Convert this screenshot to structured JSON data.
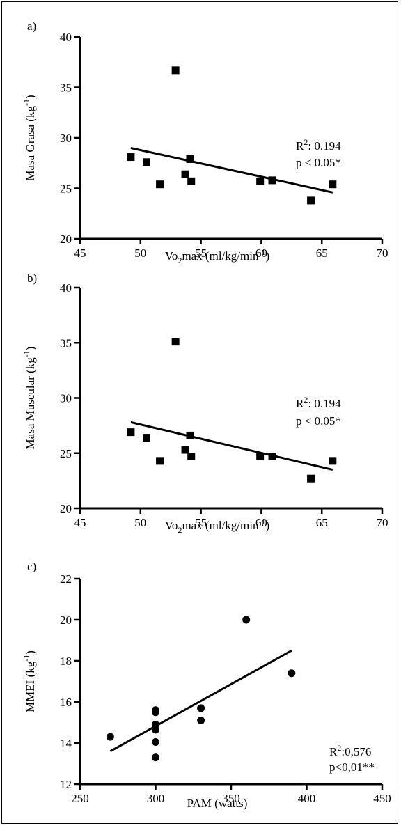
{
  "chart_data": [
    {
      "panel": "a)",
      "type": "scatter",
      "marker": "square",
      "xlabel_main": "Vo",
      "xlabel_sub": "2",
      "xlabel_rest": "max (ml/kg/min",
      "xlabel_sup": "-1",
      "xlabel_end": ")",
      "ylabel_main": "Masa Grasa (kg",
      "ylabel_sup": "-1",
      "ylabel_end": ")",
      "xlim": [
        45,
        70
      ],
      "ylim": [
        20,
        40
      ],
      "xticks": [
        "45",
        "50",
        "55",
        "60",
        "65",
        "70"
      ],
      "yticks": [
        "20",
        "25",
        "30",
        "35",
        "40"
      ],
      "points": [
        {
          "x": 49.2,
          "y": 28.1
        },
        {
          "x": 50.5,
          "y": 27.6
        },
        {
          "x": 51.6,
          "y": 25.4
        },
        {
          "x": 52.9,
          "y": 36.7
        },
        {
          "x": 53.7,
          "y": 26.4
        },
        {
          "x": 54.1,
          "y": 27.9
        },
        {
          "x": 54.2,
          "y": 25.7
        },
        {
          "x": 59.9,
          "y": 25.7
        },
        {
          "x": 60.9,
          "y": 25.8
        },
        {
          "x": 64.1,
          "y": 23.8
        },
        {
          "x": 65.9,
          "y": 25.4
        }
      ],
      "fit": {
        "x": [
          49.2,
          65.9
        ],
        "y": [
          29.0,
          24.6
        ]
      },
      "annotation": {
        "r_main": "R",
        "r_sup": "2",
        "r_rest": ": 0.194",
        "p": "p < 0.05*"
      }
    },
    {
      "panel": "b)",
      "type": "scatter",
      "marker": "square",
      "xlabel_main": "Vo",
      "xlabel_sub": "2",
      "xlabel_rest": "max (ml/kg/min",
      "xlabel_sup": "-1",
      "xlabel_end": ")",
      "ylabel_main": "Masa Muscular (kg",
      "ylabel_sup": "-1",
      "ylabel_end": ")",
      "xlim": [
        45,
        70
      ],
      "ylim": [
        20,
        40
      ],
      "xticks": [
        "45",
        "50",
        "55",
        "60",
        "65",
        "70"
      ],
      "yticks": [
        "20",
        "25",
        "30",
        "35",
        "40"
      ],
      "points": [
        {
          "x": 49.2,
          "y": 26.9
        },
        {
          "x": 50.5,
          "y": 26.4
        },
        {
          "x": 51.6,
          "y": 24.3
        },
        {
          "x": 52.9,
          "y": 35.1
        },
        {
          "x": 53.7,
          "y": 25.3
        },
        {
          "x": 54.1,
          "y": 26.6
        },
        {
          "x": 54.2,
          "y": 24.7
        },
        {
          "x": 59.9,
          "y": 24.7
        },
        {
          "x": 60.9,
          "y": 24.7
        },
        {
          "x": 64.1,
          "y": 22.7
        },
        {
          "x": 65.9,
          "y": 24.3
        }
      ],
      "fit": {
        "x": [
          49.2,
          65.9
        ],
        "y": [
          27.8,
          23.5
        ]
      },
      "annotation": {
        "r_main": "R",
        "r_sup": "2",
        "r_rest": ": 0.194",
        "p": "p < 0.05*"
      }
    },
    {
      "panel": "c)",
      "type": "scatter",
      "marker": "circle",
      "xlabel_main": "PAM (watts)",
      "xlabel_sub": "",
      "xlabel_rest": "",
      "xlabel_sup": "",
      "xlabel_end": "",
      "ylabel_main": "MMEI (kg",
      "ylabel_sup": "-1",
      "ylabel_end": ")",
      "xlim": [
        250,
        450
      ],
      "ylim": [
        12,
        22
      ],
      "xticks": [
        "250",
        "300",
        "350",
        "400",
        "450"
      ],
      "yticks": [
        "12",
        "14",
        "16",
        "18",
        "20",
        "22"
      ],
      "points": [
        {
          "x": 270,
          "y": 14.3
        },
        {
          "x": 300,
          "y": 15.6
        },
        {
          "x": 300,
          "y": 15.5
        },
        {
          "x": 300,
          "y": 14.9
        },
        {
          "x": 300,
          "y": 14.65
        },
        {
          "x": 300,
          "y": 14.05
        },
        {
          "x": 300,
          "y": 13.3
        },
        {
          "x": 330,
          "y": 15.7
        },
        {
          "x": 330,
          "y": 15.1
        },
        {
          "x": 360,
          "y": 20.0
        },
        {
          "x": 390,
          "y": 17.4
        }
      ],
      "fit": {
        "x": [
          270,
          390
        ],
        "y": [
          13.6,
          18.5
        ]
      },
      "annotation": {
        "r_main": "R",
        "r_sup": "2",
        "r_rest": ":0,576",
        "p": "p<0,01**"
      }
    }
  ]
}
